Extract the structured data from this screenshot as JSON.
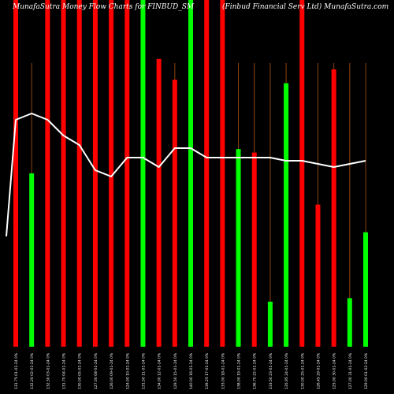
{
  "header": {
    "left_title": "MunafaSutra  Money Flow  Charts for FINBUD_SM",
    "right_title": "(Finbud Financial Serv Ltd) MunafaSutra.com"
  },
  "chart_data": {
    "type": "bar",
    "title": "MunafaSutra  Money Flow  Charts for FINBUD_SM",
    "subtitle": "(Finbud Financial Serv Ltd) MunafaSutra.com",
    "colors": {
      "up": "#00ff00",
      "down": "#ff0000",
      "line": "#ffffff",
      "guide": "#8b4513",
      "background": "#000000"
    },
    "bar_value_max": 100,
    "line_value_max": 100,
    "categories": [
      "131.75 01-01-24 0%",
      "132.20 02-01-24 0%",
      "132.50 03-01-24 0%",
      "131.70 04-01-24 0%",
      "130.00 05-01-24 0%",
      "127.00 08-01-24 0%",
      "126.00 09-01-24 0%",
      "124.00 10-01-24 0%",
      "131.50 11-01-24 0%",
      "134.00 12-01-24 0%",
      "129.50 15-01-24 0%",
      "140.00 16-01-24 0%",
      "139.25 17-01-24 0%",
      "133.00 18-01-24 0%",
      "138.00 19-01-24 0%",
      "136.70 22-01-24 0%",
      "133.50 23-01-24 0%",
      "135.95 24-01-24 0%",
      "130.00 25-01-24 0%",
      "126.45 29-01-24 0%",
      "125.00 30-01-24 0%",
      "127.00 31-01-24 0%",
      "129.00 01-02-24 0%"
    ],
    "bars": [
      {
        "dir": "down",
        "value": 100
      },
      {
        "dir": "up",
        "value": 50
      },
      {
        "dir": "down",
        "value": 100
      },
      {
        "dir": "down",
        "value": 100
      },
      {
        "dir": "down",
        "value": 100
      },
      {
        "dir": "down",
        "value": 100
      },
      {
        "dir": "down",
        "value": 100
      },
      {
        "dir": "down",
        "value": 100
      },
      {
        "dir": "up",
        "value": 100
      },
      {
        "dir": "down",
        "value": 83
      },
      {
        "dir": "down",
        "value": 77
      },
      {
        "dir": "up",
        "value": 100
      },
      {
        "dir": "down",
        "value": 100
      },
      {
        "dir": "down",
        "value": 100
      },
      {
        "dir": "up",
        "value": 57
      },
      {
        "dir": "down",
        "value": 56
      },
      {
        "dir": "up",
        "value": 13
      },
      {
        "dir": "up",
        "value": 76
      },
      {
        "dir": "down",
        "value": 100
      },
      {
        "dir": "down",
        "value": 41
      },
      {
        "dir": "down",
        "value": 80
      },
      {
        "dir": "up",
        "value": 14
      },
      {
        "dir": "up",
        "value": 33
      }
    ],
    "line": [
      72,
      74,
      72,
      67,
      64,
      56,
      54,
      60,
      60,
      57,
      63,
      63,
      60,
      60,
      60,
      60,
      60,
      59,
      59,
      58,
      57,
      58,
      59
    ]
  }
}
